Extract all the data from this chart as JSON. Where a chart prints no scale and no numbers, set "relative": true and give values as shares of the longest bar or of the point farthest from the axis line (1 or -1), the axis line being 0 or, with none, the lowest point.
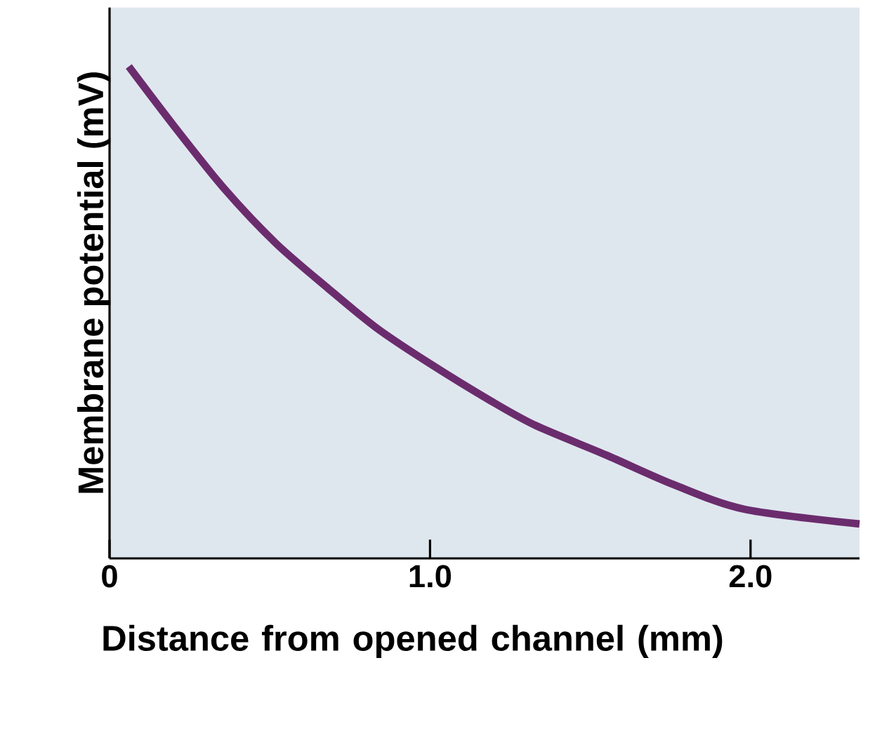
{
  "chart_data": {
    "type": "line",
    "relative": true,
    "xlabel": "Distance from opened channel (mm)",
    "ylabel": "Membrane potential (mV)",
    "xlim": [
      0,
      2.34
    ],
    "xticks": [
      {
        "value": 0,
        "label": "0"
      },
      {
        "value": 1,
        "label": "1.0"
      },
      {
        "value": 2,
        "label": "2.0"
      }
    ],
    "tick_labels": "x",
    "series": [
      {
        "color": "#6b2c6e",
        "x": [
          0.06,
          0.2,
          0.36,
          0.52,
          0.68,
          0.83,
          0.99,
          1.19,
          1.33,
          1.55,
          1.76,
          1.98,
          2.34
        ],
        "values": [
          1.0,
          0.88,
          0.75,
          0.64,
          0.55,
          0.47,
          0.4,
          0.32,
          0.27,
          0.21,
          0.15,
          0.1,
          0.07
        ]
      }
    ]
  }
}
